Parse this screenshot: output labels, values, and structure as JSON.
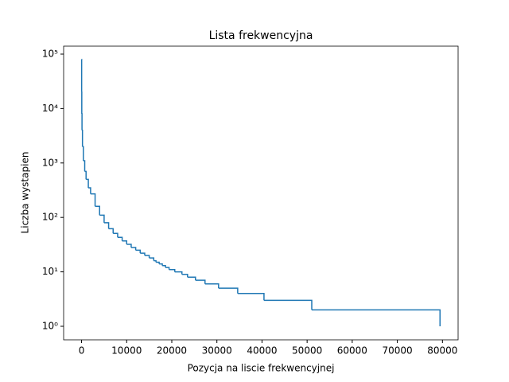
{
  "chart_data": {
    "type": "line",
    "title": "Lista frekwencyjna",
    "xlabel": "Pozycja na liscie frekwencyjnej",
    "ylabel": "Liczba wystapien",
    "yscale": "log",
    "drawstyle": "steps-post",
    "x": [
      0,
      20,
      50,
      100,
      200,
      400,
      700,
      1000,
      1500,
      2000,
      3000,
      4000,
      5000,
      6000,
      7000,
      8000,
      9000,
      10000,
      11000,
      12000,
      13000,
      14000,
      15000,
      16000,
      16500,
      17200,
      17900,
      18600,
      19400,
      20660,
      22250,
      23490,
      25250,
      27370,
      30370,
      34610,
      40440,
      51030,
      79460
    ],
    "series": [
      {
        "name": "Liczba wystapien",
        "color": "#1f77b4",
        "values": [
          80000,
          20000,
          8000,
          4000,
          2000,
          1100,
          700,
          500,
          350,
          270,
          160,
          110,
          80,
          62,
          51,
          43,
          37,
          32,
          28,
          25,
          22,
          20,
          18,
          16,
          15,
          14,
          13,
          12,
          11,
          10,
          9,
          8,
          7,
          6,
          5,
          4,
          3,
          2,
          1
        ]
      }
    ],
    "xlim": [
      -3975,
      83470
    ],
    "ylim": [
      0.564,
      140000
    ],
    "xticks": [
      0,
      10000,
      20000,
      30000,
      40000,
      50000,
      60000,
      70000,
      80000
    ],
    "yticks": [
      {
        "value": 1,
        "label": "10⁰"
      },
      {
        "value": 10,
        "label": "10¹"
      },
      {
        "value": 100,
        "label": "10²"
      },
      {
        "value": 1000,
        "label": "10³"
      },
      {
        "value": 10000,
        "label": "10⁴"
      },
      {
        "value": 100000,
        "label": "10⁵"
      }
    ],
    "grid": false
  }
}
